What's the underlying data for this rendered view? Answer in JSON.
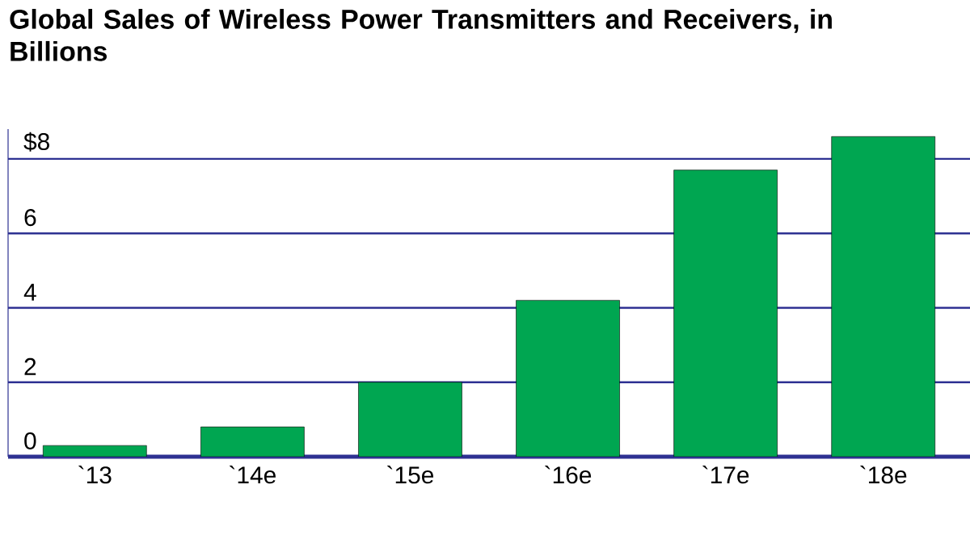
{
  "chart_data": {
    "type": "bar",
    "title": "Global Sales of Wireless Power Transmitters and Receivers, in Billions",
    "categories": [
      "`13",
      "`14e",
      "`15e",
      "`16e",
      "`17e",
      "`18e"
    ],
    "values": [
      0.3,
      0.8,
      2.0,
      4.2,
      7.7,
      8.6
    ],
    "color": "#00a651",
    "ylim": [
      0,
      8.8
    ],
    "yticks": [
      0,
      2,
      4,
      6,
      {
        "value": 8,
        "label": "$8"
      }
    ],
    "grid": "y"
  }
}
